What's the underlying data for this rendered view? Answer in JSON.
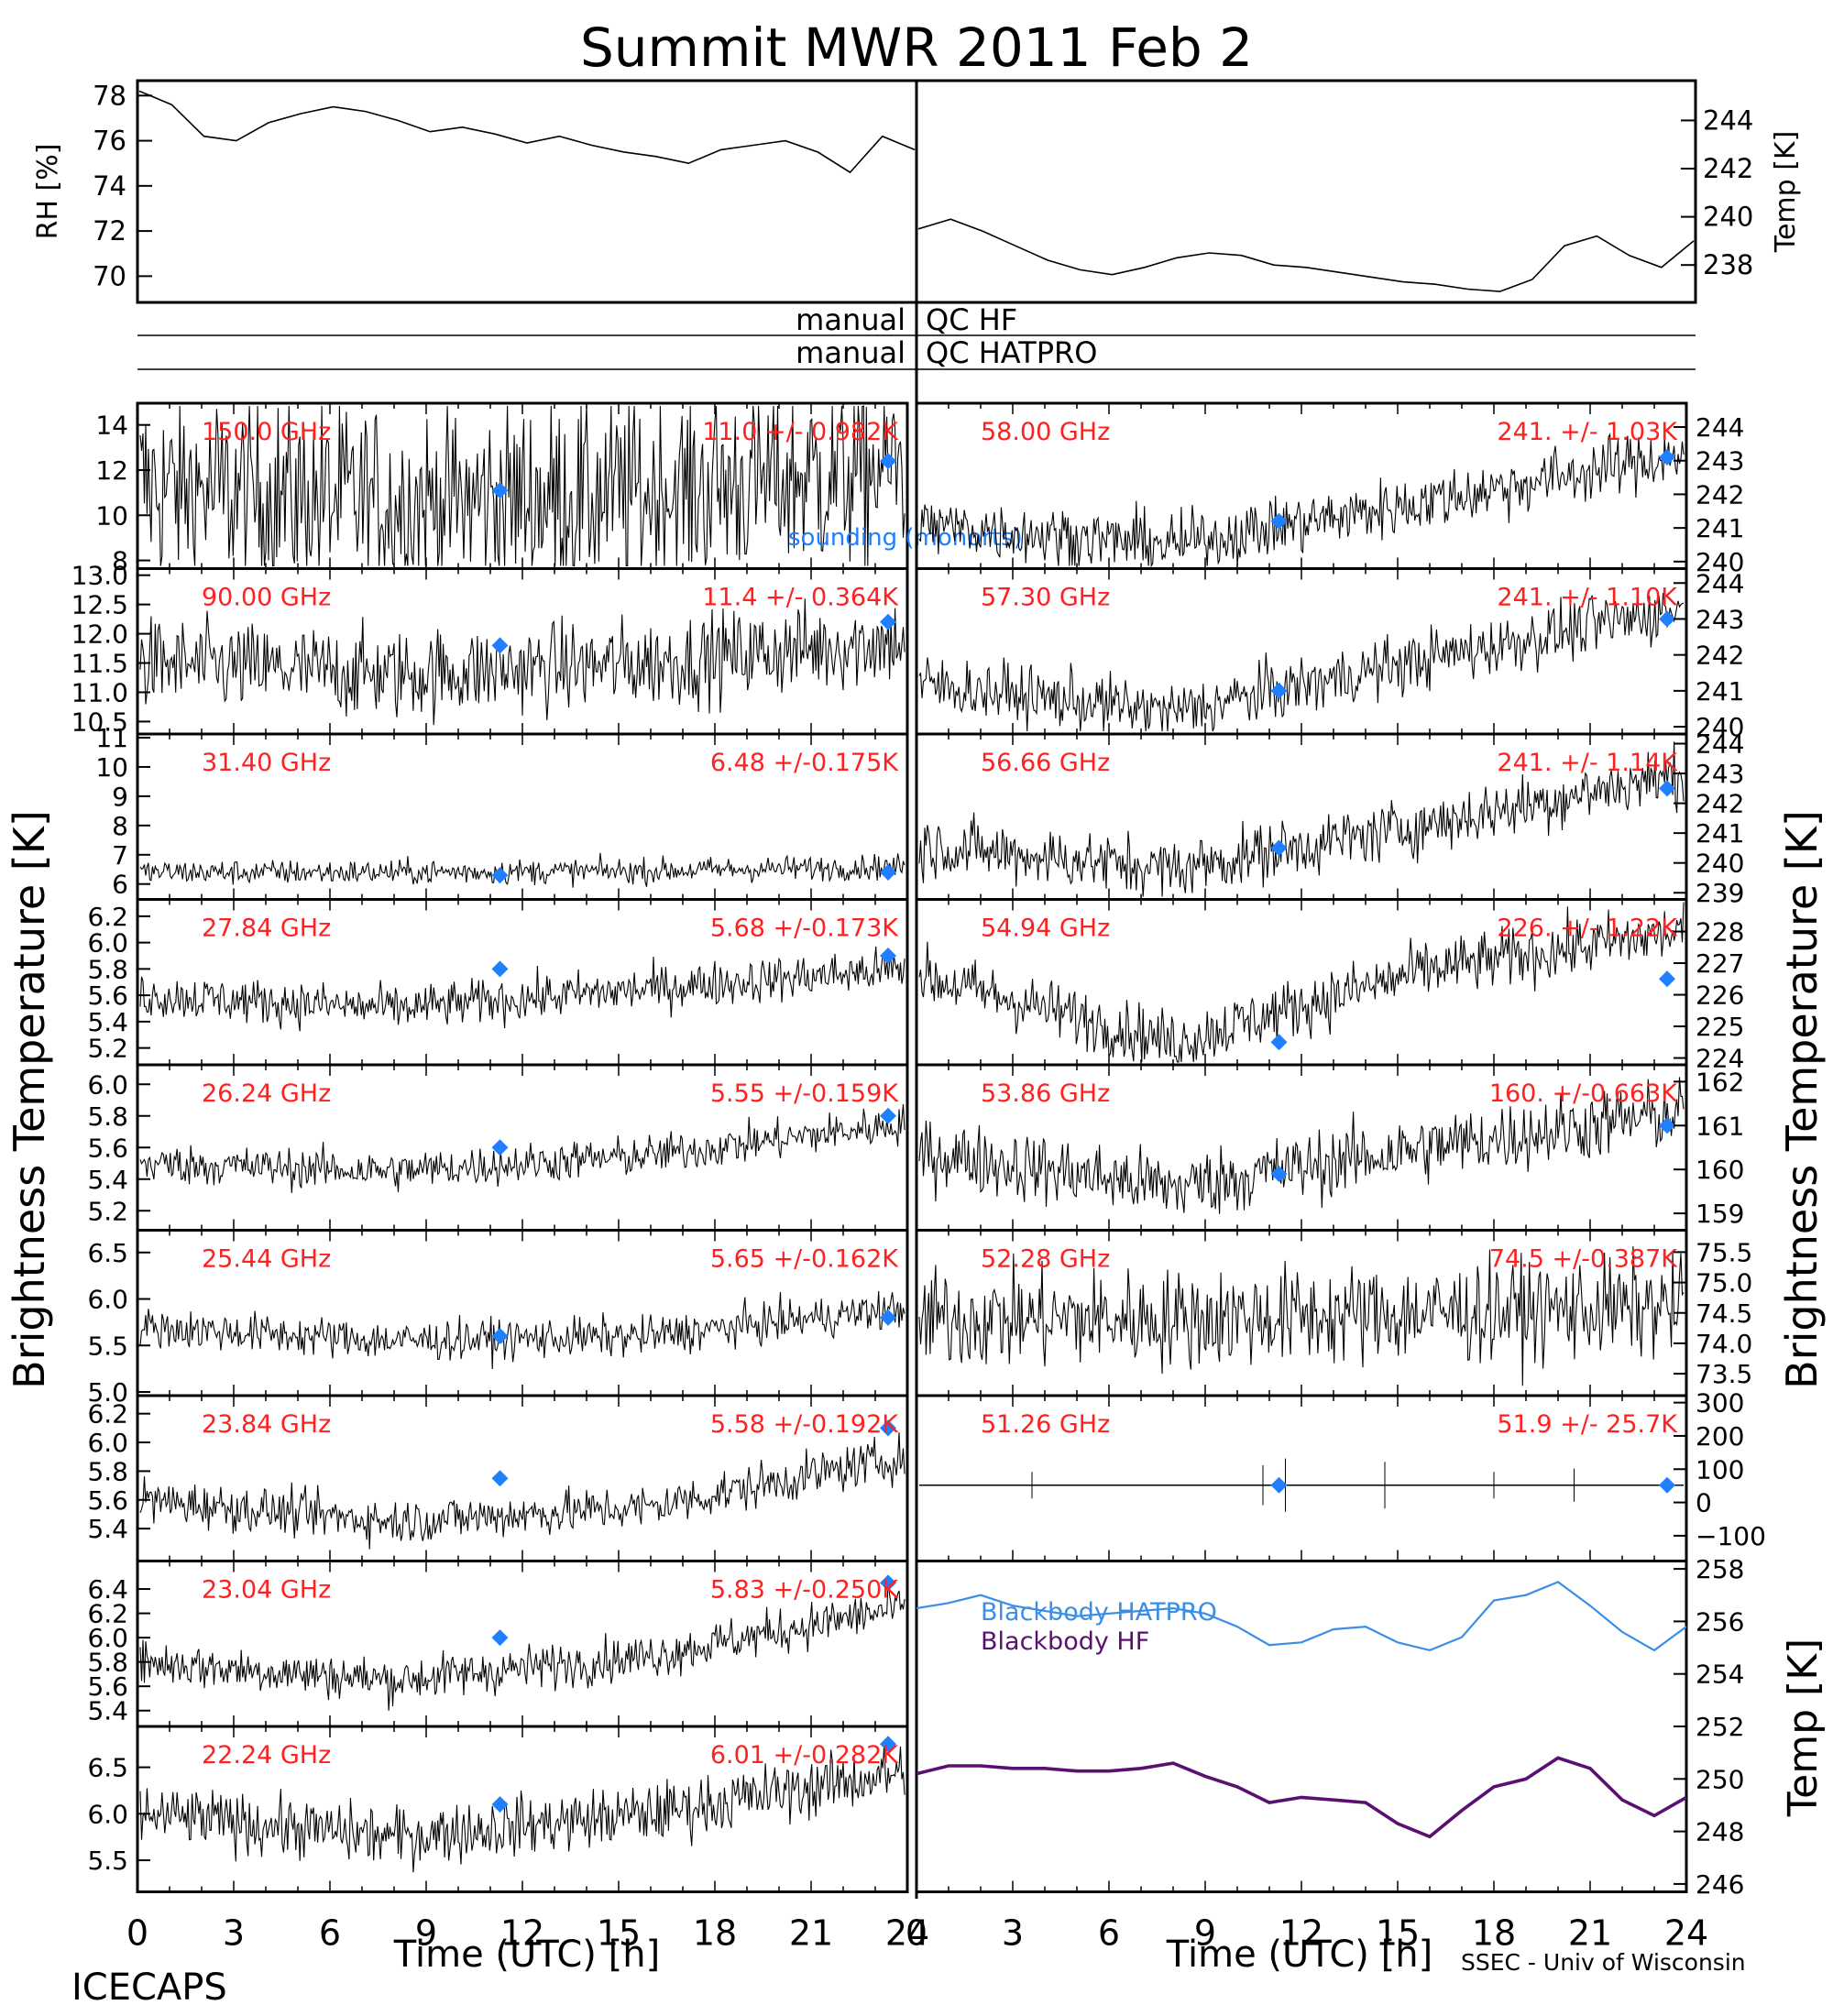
{
  "title": "Summit MWR 2011 Feb  2",
  "footer": {
    "left": "ICECAPS",
    "right": "SSEC - Univ of Wisconsin"
  },
  "x_axis": {
    "label": "Time (UTC) [h]",
    "ticks": [
      "0",
      "3",
      "6",
      "9",
      "12",
      "15",
      "18",
      "21",
      "24"
    ],
    "range": [
      0,
      24
    ]
  },
  "left_ylabel": "Brightness Temperature [K]",
  "right_ylabel": "Brightness Temperature [K]",
  "colors": {
    "data": "#000000",
    "frequency_label": "#ff2020",
    "sounding": "#1f7fff",
    "blackbody_hatpro": "#3a8ee6",
    "blackbody_hf": "#5a1070"
  },
  "chart_data": [
    {
      "type": "line",
      "id": "rh",
      "ylabel": "RH [%]",
      "ylim": [
        69,
        78.5
      ],
      "ticks": [
        70,
        72,
        74,
        76,
        78
      ],
      "x_range": [
        0,
        12
      ],
      "series": [
        {
          "x": [
            0,
            0.5,
            1,
            1.5,
            2,
            2.5,
            3,
            3.5,
            4,
            4.5,
            5,
            5.5,
            6,
            6.5,
            7,
            7.5,
            8,
            8.5,
            9,
            9.5,
            10,
            10.5,
            11,
            11.5,
            12
          ],
          "values": [
            78.2,
            77.6,
            76.2,
            76.0,
            76.8,
            77.2,
            77.5,
            77.3,
            76.9,
            76.4,
            76.6,
            76.3,
            75.9,
            76.2,
            75.8,
            75.5,
            75.3,
            75.0,
            75.6,
            75.8,
            76.0,
            75.5,
            74.6,
            76.2,
            75.6
          ]
        }
      ]
    },
    {
      "type": "line",
      "id": "temp",
      "ylabel": "Temp [K]",
      "ylim": [
        236.6,
        245.5
      ],
      "ticks": [
        238,
        240,
        242,
        244
      ],
      "x_range": [
        0,
        24
      ],
      "series": [
        {
          "x": [
            12,
            12.5,
            13,
            13.5,
            14,
            14.5,
            15,
            15.5,
            16,
            16.5,
            17,
            17.5,
            18,
            18.5,
            19,
            19.5,
            20,
            20.5,
            21,
            21.5,
            22,
            22.5,
            23,
            23.5,
            24
          ],
          "values": [
            239.5,
            239.9,
            239.4,
            238.8,
            238.2,
            237.8,
            237.6,
            237.9,
            238.3,
            238.5,
            238.4,
            238.0,
            237.9,
            237.7,
            237.5,
            237.3,
            237.2,
            237.0,
            236.9,
            237.4,
            238.8,
            239.2,
            238.4,
            237.9,
            239.0
          ]
        }
      ]
    }
  ],
  "qc_bars": [
    {
      "left": "manual",
      "right": "QC HF"
    },
    {
      "left": "manual",
      "right": "QC HATPRO"
    }
  ],
  "panels": [
    {
      "col": 0,
      "row": 0,
      "freq": "150.0 GHz",
      "stats": "11.0 +/- 0.982K",
      "ylim": [
        7.8,
        14.8
      ],
      "ticks": [
        "8",
        "10",
        "12",
        "14"
      ],
      "mean": 11.0,
      "noise": 2.0,
      "trend": [
        11.3,
        10.5,
        11.0,
        12.2
      ],
      "sounding": [
        11.1,
        12.4
      ],
      "note": "sounding (monorts)"
    },
    {
      "col": 0,
      "row": 1,
      "freq": "90.00 GHz",
      "stats": "11.4 +/- 0.364K",
      "ylim": [
        10.35,
        13.05
      ],
      "ticks": [
        "10.5",
        "11.0",
        "11.5",
        "12.0",
        "12.5",
        "13.0"
      ],
      "mean": 11.4,
      "noise": 0.9,
      "trend": [
        11.5,
        11.3,
        11.5,
        11.9
      ],
      "sounding": [
        11.8,
        12.2
      ]
    },
    {
      "col": 0,
      "row": 2,
      "freq": "31.40 GHz",
      "stats": "6.48 +/-0.175K",
      "ylim": [
        5.6,
        11.0
      ],
      "ticks": [
        "6",
        "7",
        "8",
        "9",
        "10",
        "11"
      ],
      "mean": 6.48,
      "noise": 0.25,
      "trend": [
        6.4,
        6.4,
        6.45,
        6.6
      ],
      "sounding": [
        6.3,
        6.4
      ]
    },
    {
      "col": 0,
      "row": 3,
      "freq": "27.84 GHz",
      "stats": "5.68 +/-0.173K",
      "ylim": [
        5.1,
        6.3
      ],
      "ticks": [
        "5.2",
        "5.4",
        "5.6",
        "5.8",
        "6.0",
        "6.2"
      ],
      "mean": 5.68,
      "noise": 0.45,
      "trend": [
        5.6,
        5.5,
        5.65,
        5.8
      ],
      "sounding": [
        5.8,
        5.9
      ]
    },
    {
      "col": 0,
      "row": 4,
      "freq": "26.24 GHz",
      "stats": "5.55 +/-0.159K",
      "ylim": [
        5.1,
        6.1
      ],
      "ticks": [
        "5.2",
        "5.4",
        "5.6",
        "5.8",
        "6.0"
      ],
      "mean": 5.55,
      "noise": 0.4,
      "trend": [
        5.5,
        5.45,
        5.55,
        5.75
      ],
      "sounding": [
        5.6,
        5.8
      ]
    },
    {
      "col": 0,
      "row": 5,
      "freq": "25.44 GHz",
      "stats": "5.65 +/-0.162K",
      "ylim": [
        5.0,
        6.7
      ],
      "ticks": [
        "5.0",
        "5.5",
        "6.0",
        "6.5"
      ],
      "mean": 5.65,
      "noise": 0.4,
      "trend": [
        5.7,
        5.55,
        5.6,
        5.9
      ],
      "sounding": [
        5.6,
        5.8
      ]
    },
    {
      "col": 0,
      "row": 6,
      "freq": "23.84 GHz",
      "stats": "5.58 +/-0.192K",
      "ylim": [
        5.2,
        6.3
      ],
      "ticks": [
        "5.4",
        "5.6",
        "5.8",
        "6.0",
        "6.2"
      ],
      "mean": 5.58,
      "noise": 0.45,
      "trend": [
        5.6,
        5.45,
        5.55,
        5.9
      ],
      "sounding": [
        5.75,
        6.1
      ]
    },
    {
      "col": 0,
      "row": 7,
      "freq": "23.04 GHz",
      "stats": "5.83 +/-0.250K",
      "ylim": [
        5.3,
        6.6
      ],
      "ticks": [
        "5.4",
        "5.6",
        "5.8",
        "6.0",
        "6.2",
        "6.4"
      ],
      "mean": 5.83,
      "noise": 0.45,
      "trend": [
        5.8,
        5.65,
        5.85,
        6.25
      ],
      "sounding": [
        6.0,
        6.45
      ]
    },
    {
      "col": 0,
      "row": 8,
      "freq": "22.24 GHz",
      "stats": "6.01 +/-0.282K",
      "ylim": [
        5.2,
        6.9
      ],
      "ticks": [
        "5.5",
        "6.0",
        "6.5"
      ],
      "mean": 6.01,
      "noise": 0.6,
      "trend": [
        6.0,
        5.75,
        6.0,
        6.45
      ],
      "sounding": [
        6.1,
        6.75
      ]
    },
    {
      "col": 1,
      "row": 0,
      "freq": "58.00 GHz",
      "stats": "241. +/- 1.03K",
      "ylim": [
        239.9,
        244.6
      ],
      "ticks": [
        "240",
        "241",
        "242",
        "243",
        "244"
      ],
      "mean": 241.0,
      "noise": 0.6,
      "trend": [
        241.1,
        240.5,
        241.8,
        243.2
      ],
      "sounding": [
        241.2,
        243.1
      ]
    },
    {
      "col": 1,
      "row": 1,
      "freq": "57.30 GHz",
      "stats": "241. +/- 1.10K",
      "ylim": [
        239.9,
        244.3
      ],
      "ticks": [
        "240",
        "241",
        "242",
        "243",
        "244"
      ],
      "mean": 241.0,
      "noise": 0.6,
      "trend": [
        241.2,
        240.4,
        241.9,
        243.3
      ],
      "sounding": [
        241.0,
        243.0
      ]
    },
    {
      "col": 1,
      "row": 2,
      "freq": "56.66 GHz",
      "stats": "241. +/- 1.14K",
      "ylim": [
        238.9,
        244.2
      ],
      "ticks": [
        "239",
        "240",
        "241",
        "242",
        "243",
        "244"
      ],
      "mean": 241.0,
      "noise": 0.6,
      "trend": [
        240.6,
        239.8,
        241.3,
        243.0
      ],
      "sounding": [
        240.5,
        242.5
      ]
    },
    {
      "col": 1,
      "row": 3,
      "freq": "54.94 GHz",
      "stats": "226. +/- 1.22K",
      "ylim": [
        223.9,
        228.9
      ],
      "ticks": [
        "224",
        "225",
        "226",
        "227",
        "228"
      ],
      "mean": 226.0,
      "noise": 0.6,
      "trend": [
        226.6,
        224.5,
        226.8,
        228.0
      ],
      "sounding": [
        224.5,
        226.5
      ]
    },
    {
      "col": 1,
      "row": 4,
      "freq": "53.86 GHz",
      "stats": "160. +/-0.663K",
      "ylim": [
        158.7,
        162.3
      ],
      "ticks": [
        "159",
        "160",
        "161",
        "162"
      ],
      "mean": 160.0,
      "noise": 0.7,
      "trend": [
        160.4,
        159.6,
        160.5,
        161.3
      ],
      "sounding": [
        159.9,
        161.0
      ]
    },
    {
      "col": 1,
      "row": 5,
      "freq": "52.28 GHz",
      "stats": "74.5 +/-0.387K",
      "ylim": [
        73.2,
        75.8
      ],
      "ticks": [
        "73.5",
        "74.0",
        "74.5",
        "75.0",
        "75.5"
      ],
      "mean": 74.5,
      "noise": 1.0,
      "trend": [
        74.4,
        74.4,
        74.5,
        74.6
      ],
      "sounding": []
    },
    {
      "col": 1,
      "row": 6,
      "freq": "51.26 GHz",
      "stats": "51.9 +/- 25.7K",
      "ylim": [
        -165,
        310
      ],
      "ticks": [
        "−100",
        "0",
        "100",
        "200",
        "300"
      ],
      "mean": 51.9,
      "noise": 1.0,
      "trend": [
        51.9,
        51.9,
        51.9,
        51.9
      ],
      "sounding": [
        51.9,
        51.9
      ]
    }
  ],
  "blackbody": {
    "ylabel": "Temp [K]",
    "ylim": [
      245.7,
      258.3
    ],
    "ticks": [
      "246",
      "248",
      "250",
      "252",
      "254",
      "256",
      "258"
    ],
    "legend": [
      {
        "label": "Blackbody HATPRO"
      },
      {
        "label": "Blackbody HF"
      }
    ],
    "series": [
      {
        "name": "Blackbody HATPRO",
        "x": [
          0,
          1,
          2,
          3,
          4,
          5,
          6,
          7,
          8,
          9,
          10,
          11,
          12,
          13,
          14,
          15,
          16,
          17,
          18,
          19,
          20,
          21,
          22,
          23,
          24
        ],
        "values": [
          256.5,
          256.7,
          257.0,
          256.6,
          256.4,
          256.2,
          256.3,
          256.4,
          256.5,
          256.3,
          255.8,
          255.1,
          255.2,
          255.7,
          255.8,
          255.2,
          254.9,
          255.4,
          256.8,
          257.0,
          257.5,
          256.6,
          255.6,
          254.9,
          255.8
        ]
      },
      {
        "name": "Blackbody HF",
        "x": [
          0,
          1,
          2,
          3,
          4,
          5,
          6,
          7,
          8,
          9,
          10,
          11,
          12,
          13,
          14,
          15,
          16,
          17,
          18,
          19,
          20,
          21,
          22,
          23,
          24
        ],
        "values": [
          250.2,
          250.5,
          250.5,
          250.4,
          250.4,
          250.3,
          250.3,
          250.4,
          250.6,
          250.1,
          249.7,
          249.1,
          249.3,
          249.2,
          249.1,
          248.3,
          247.8,
          248.8,
          249.7,
          250.0,
          250.8,
          250.4,
          249.2,
          248.6,
          249.3
        ]
      }
    ]
  }
}
